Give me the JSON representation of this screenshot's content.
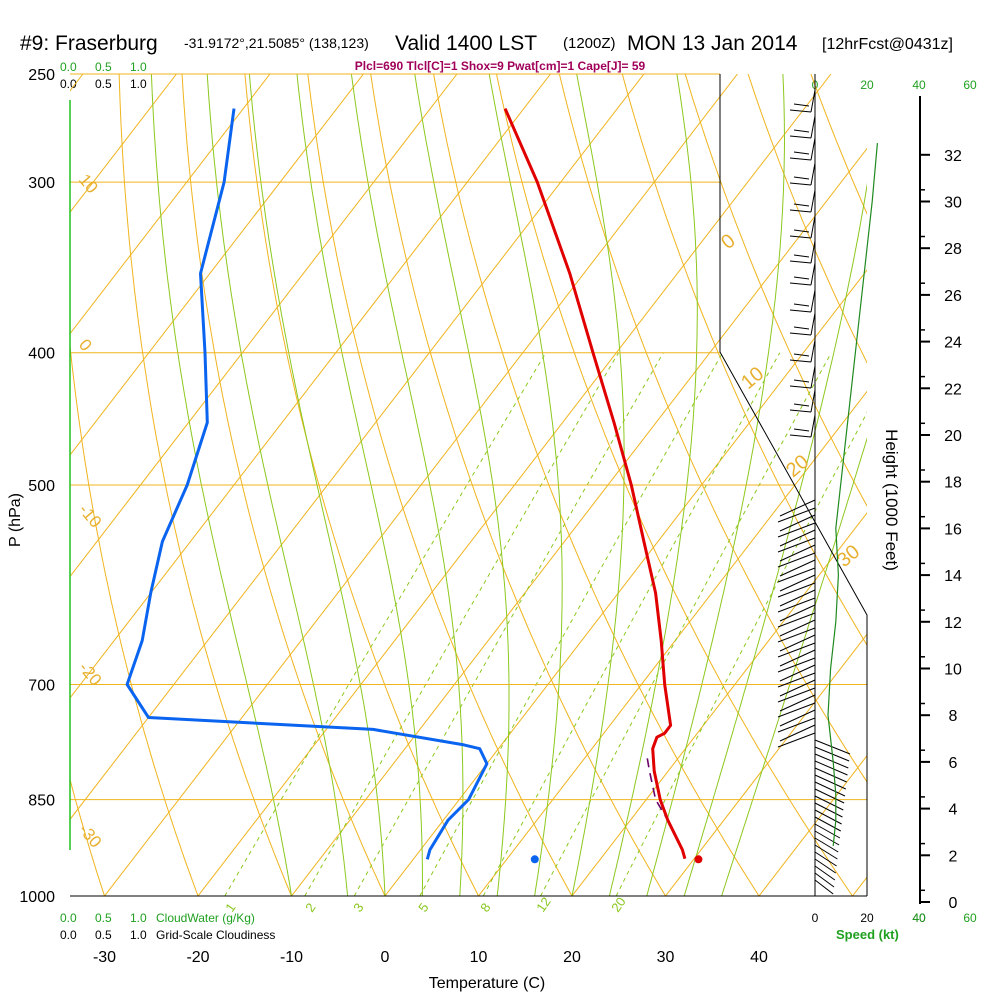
{
  "header": {
    "station": "#9: Fraserburg",
    "coords": "-31.9172°,21.5085° (138,123)",
    "valid": "Valid 1400 LST",
    "utc": "(1200Z)",
    "date": "MON 13 Jan 2014",
    "forecast": "[12hrFcst@0431z]",
    "indices": "Plcl=690 Tlcl[C]=1 Shox=9 Pwat[cm]=1 Cape[J]= 59"
  },
  "legend": {
    "cloudwater_ticks": [
      "0.0",
      "0.5",
      "1.0"
    ],
    "cloudiness_ticks": [
      "0.0",
      "0.5",
      "1.0"
    ],
    "cloudwater_label": "CloudWater (g/Kg)",
    "cloudiness_label": "Grid-Scale Cloudiness",
    "speed_label": "Speed (kt)",
    "speed_ticks_green": [
      "0",
      "20",
      "40",
      "60"
    ],
    "speed_ticks_black": [
      "0",
      "20",
      "40"
    ]
  },
  "colors": {
    "isotherm": "#f0b41e",
    "dry_adiabat": "#f0b41e",
    "moist_adiabat": "#8cc81e",
    "mixing_ratio": "#8cc81e",
    "temperature": "#e00000",
    "dewpoint": "#0a64f0",
    "parcel": "#6a006a",
    "cloudwater": "#20a020",
    "wind_speed": "#208a20"
  },
  "chart_data": {
    "type": "line",
    "diagram": "skew-t log-p",
    "xlabel": "Temperature (C)",
    "ylabel": "P (hPa)",
    "y2label": "Height (1000 Feet)",
    "pressure_ticks": [
      250,
      300,
      400,
      500,
      700,
      850,
      1000
    ],
    "temperature_ticks": [
      -30,
      -20,
      -10,
      0,
      10,
      20,
      30,
      40
    ],
    "height_ticks": [
      0,
      2,
      4,
      6,
      8,
      10,
      12,
      14,
      16,
      18,
      20,
      22,
      24,
      26,
      28,
      30,
      32
    ],
    "isotherm_labels": [
      "10",
      "0",
      "-10",
      "-20",
      "-30"
    ],
    "dry_adiabat_labels": [
      "0",
      "10",
      "20",
      "30"
    ],
    "mixing_ratio_labels": [
      "1",
      "2",
      "3",
      "5",
      "8",
      "12",
      "20"
    ],
    "series": [
      {
        "name": "temperature",
        "pressure": [
          939,
          925,
          880,
          850,
          810,
          780,
          765,
          760,
          750,
          700,
          650,
          600,
          550,
          500,
          450,
          400,
          350,
          300,
          265
        ],
        "temperature": [
          29,
          28,
          24,
          21.5,
          18.5,
          16.5,
          16,
          16.5,
          16.5,
          12.5,
          8.5,
          4,
          -1.5,
          -7.5,
          -14.5,
          -22.5,
          -31.5,
          -42.5,
          -52
        ]
      },
      {
        "name": "dewpoint",
        "pressure": [
          940,
          925,
          880,
          850,
          800,
          780,
          775,
          755,
          740,
          700,
          650,
          600,
          550,
          500,
          450,
          400,
          350,
          300,
          265
        ],
        "temperature": [
          1.5,
          1,
          0.5,
          1,
          0,
          -2,
          -4,
          -15,
          -40,
          -45,
          -47,
          -50,
          -53,
          -55,
          -58,
          -64,
          -71,
          -76,
          -81
        ]
      },
      {
        "name": "parcel",
        "pressure": [
          925,
          880,
          850,
          810,
          790
        ],
        "temperature": [
          28,
          24,
          21,
          18,
          16.5
        ]
      }
    ],
    "surface": {
      "temperature": 30.5,
      "dewpoint": 13,
      "pressure": 940
    },
    "wind_speed_profile": {
      "height_kft": [
        2.4,
        3.5,
        4.6,
        6,
        7,
        8,
        10,
        12,
        14,
        16,
        18,
        20,
        22,
        24,
        26,
        28,
        30,
        32.5
      ],
      "speed_kt": [
        7,
        8,
        8,
        7,
        6,
        5,
        6,
        8,
        9,
        8,
        10,
        12,
        14,
        16,
        18,
        20,
        22,
        24
      ]
    }
  }
}
